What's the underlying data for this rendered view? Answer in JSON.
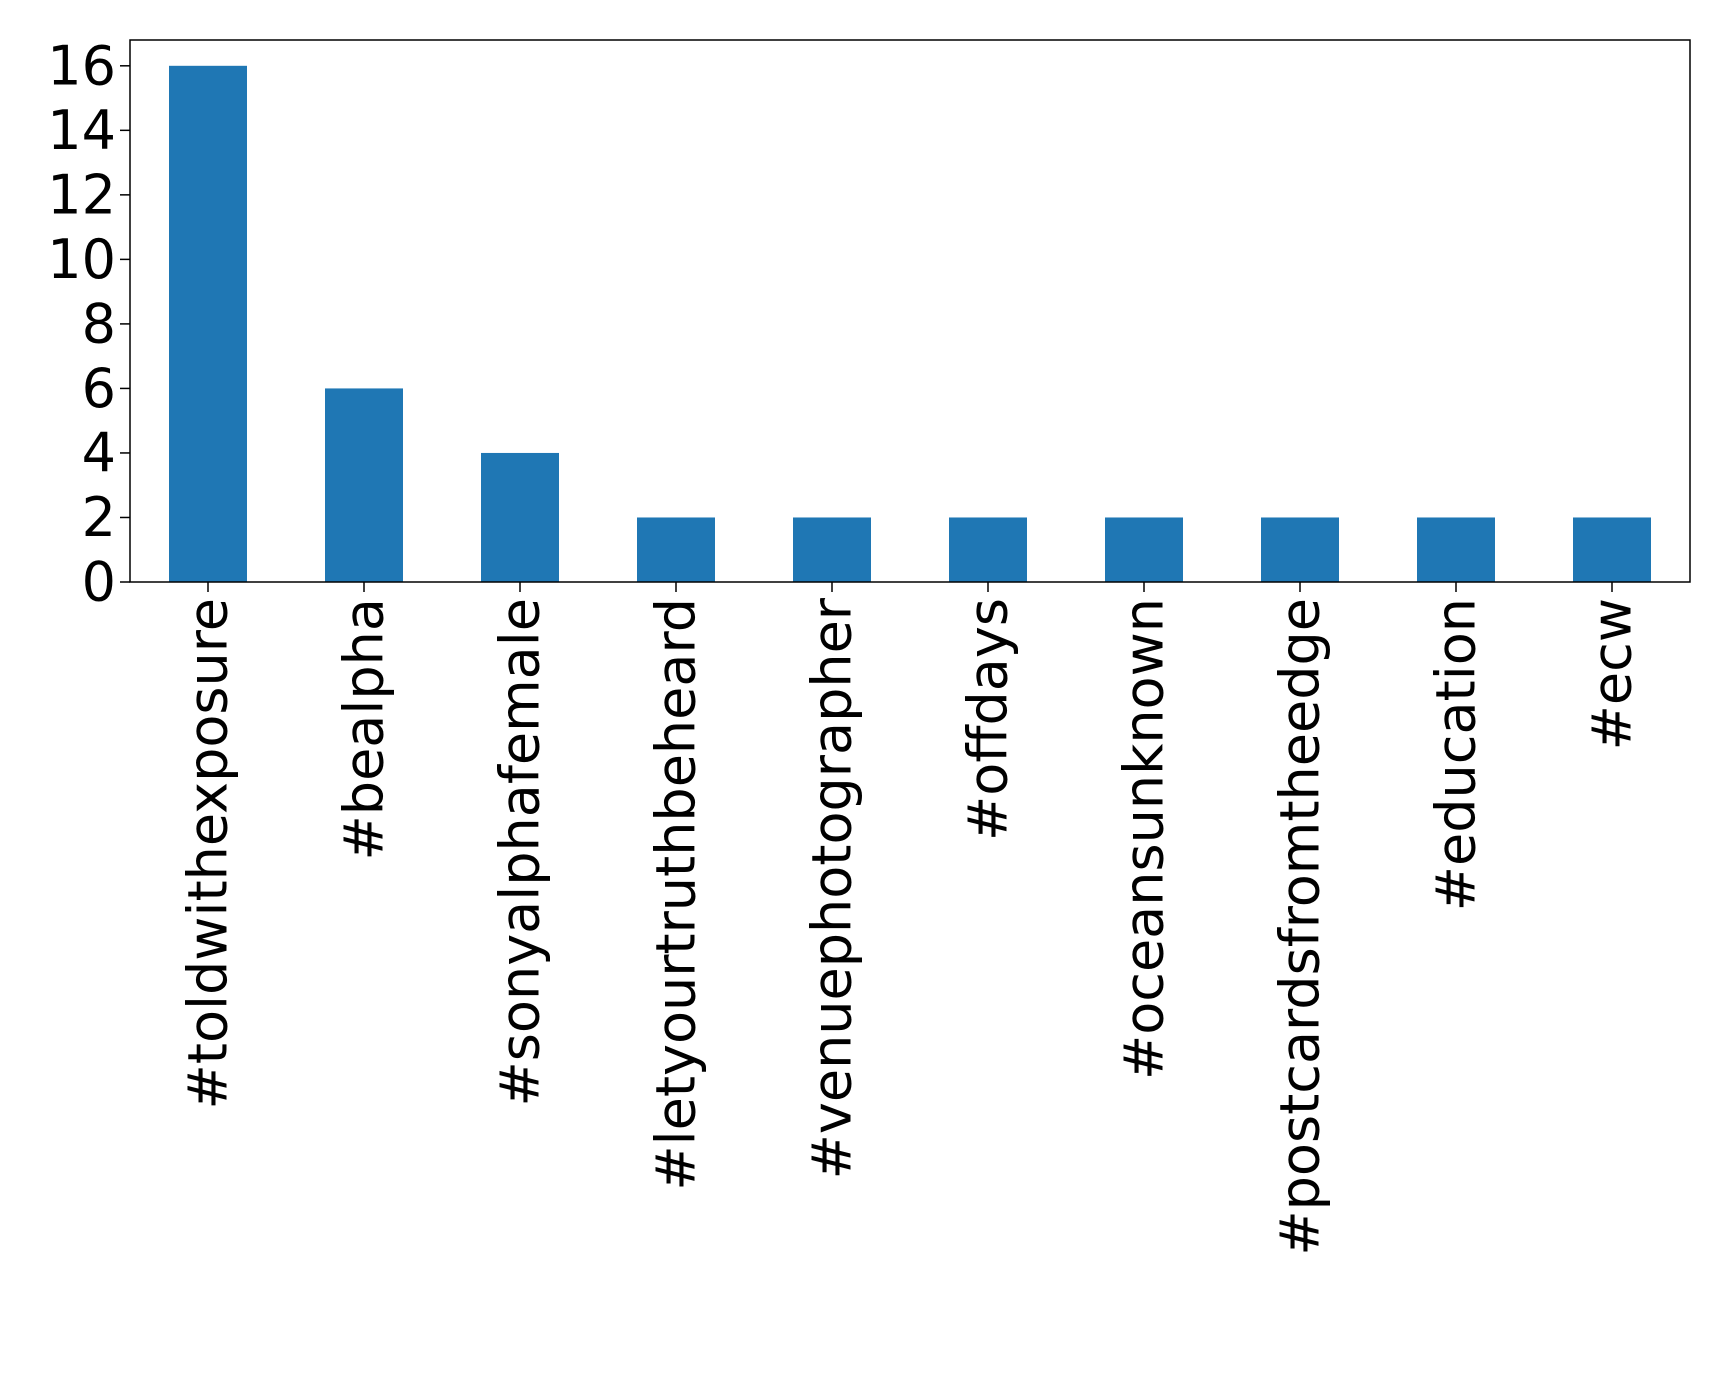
{
  "chart_data": {
    "type": "bar",
    "title": "",
    "xlabel": "",
    "ylabel": "",
    "categories": [
      "#toldwithexposure",
      "#bealpha",
      "#sonyalphafemale",
      "#letyourtruthbeheard",
      "#venuephotographer",
      "#offdays",
      "#oceansunknown",
      "#postcardsfromtheedge",
      "#education",
      "#ecw"
    ],
    "values": [
      16,
      6,
      4,
      2,
      2,
      2,
      2,
      2,
      2,
      2
    ],
    "ylim": [
      0,
      16.8
    ],
    "yticks": [
      0,
      2,
      4,
      6,
      8,
      10,
      12,
      14,
      16
    ],
    "bar_color": "#1f77b4",
    "grid": false,
    "legend": "none"
  }
}
